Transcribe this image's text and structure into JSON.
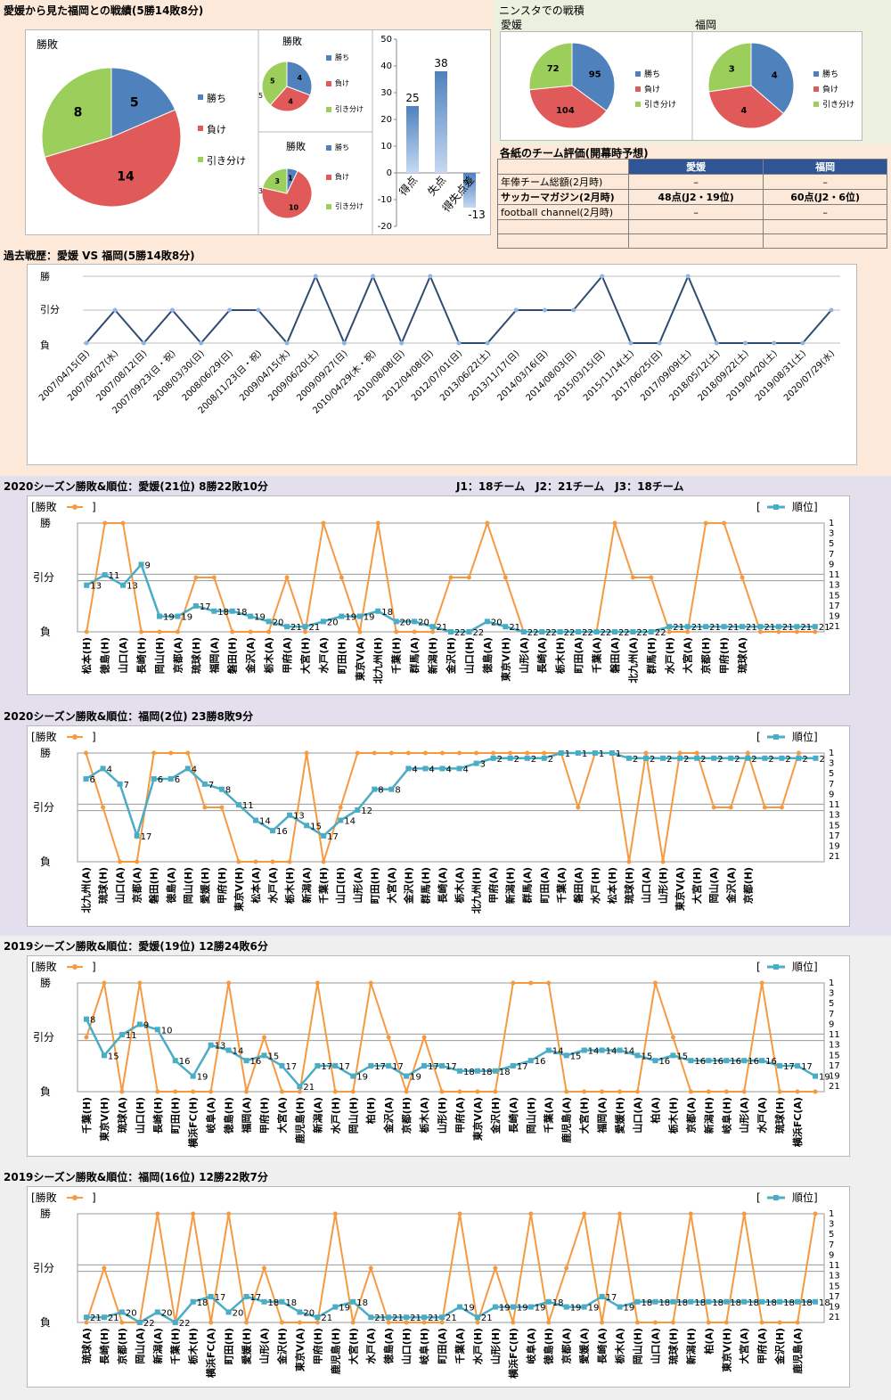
{
  "h2h": {
    "title": "愛媛から見た福岡との戦績(5勝14敗8分)",
    "big_pie": {
      "title": "勝敗",
      "values": [
        5,
        14,
        8
      ]
    },
    "small_pie1": {
      "title": "勝敗",
      "values": [
        4,
        4,
        5
      ]
    },
    "small_pie2": {
      "title": "勝敗",
      "values": [
        1,
        10,
        3
      ]
    },
    "legend": [
      "勝ち",
      "負け",
      "引き分け"
    ],
    "goals": {
      "categories": [
        "得点",
        "失点",
        "得失点差"
      ],
      "values": [
        25,
        38,
        -13
      ],
      "yticks": [
        50,
        40,
        30,
        20,
        10,
        0,
        -10,
        -20
      ]
    }
  },
  "ninsta": {
    "title": "ニンスタでの戦積",
    "ehime_label": "愛媛",
    "fukuoka_label": "福岡",
    "ehime_values": [
      95,
      104,
      72
    ],
    "fukuoka_values": [
      4,
      4,
      3
    ],
    "legend": [
      "勝ち",
      "負け",
      "引き分け"
    ]
  },
  "eval": {
    "title": "各紙のチーム評価(開幕時予想)",
    "cols": [
      "愛媛",
      "福岡"
    ],
    "rows": [
      [
        "年俸チーム総額(2月時)",
        "–",
        "–"
      ],
      [
        "サッカーマガジン(2月時)",
        "48点(J2・19位)",
        "60点(J2・6位)"
      ],
      [
        "football channel(2月時)",
        "–",
        "–"
      ],
      [
        "",
        "",
        ""
      ],
      [
        "",
        "",
        ""
      ]
    ]
  },
  "history": {
    "title": "過去戦歴：愛媛 VS 福岡(5勝14敗8分)",
    "ylabels": [
      "勝",
      "引分",
      "負"
    ],
    "dates": [
      "2007/04/15(日)",
      "2007/06/27(水)",
      "2007/08/12(日)",
      "2007/09/23(日・祝)",
      "2008/03/30(日)",
      "2008/06/29(日)",
      "2008/11/23(日・祝)",
      "2009/04/15(水)",
      "2009/06/20(土)",
      "2009/09/27(日)",
      "2010/04/29(木・祝)",
      "2010/08/08(日)",
      "2012/04/08(日)",
      "2012/07/01(日)",
      "2013/06/22(土)",
      "2013/11/17(日)",
      "2014/03/16(日)",
      "2014/08/03(日)",
      "2015/03/15(日)",
      "2015/11/14(土)",
      "2017/06/25(日)",
      "2017/09/09(土)",
      "2018/05/12(土)",
      "2018/09/22(土)",
      "2019/04/20(土)",
      "2019/08/31(土)",
      "2020/07/29(水)"
    ],
    "results": [
      0,
      1,
      0,
      1,
      0,
      1,
      1,
      0,
      2,
      0,
      2,
      0,
      2,
      0,
      0,
      1,
      1,
      1,
      2,
      0,
      0,
      2,
      0,
      0,
      0,
      0,
      1
    ]
  },
  "league_note": "J1：18チーム　J2：21チーム　J3：18チーム",
  "seasons": [
    {
      "title": "2020シーズン勝敗&順位：愛媛(21位) 8勝22敗10分",
      "legend_left": "[勝敗",
      "legend_left_close": "]",
      "legend_right": "[",
      "legend_right_label": "順位]",
      "ylabels": [
        "勝",
        "引分",
        "負"
      ],
      "rank_ticks": [
        "1",
        "3",
        "5",
        "7",
        "9",
        "11",
        "13",
        "15",
        "17",
        "19",
        "21"
      ],
      "opponents": [
        "松本(H)",
        "徳島(H)",
        "山口(A)",
        "長崎(H)",
        "岡山(H)",
        "京都(A)",
        "琉球(H)",
        "福岡(A)",
        "磐田(H)",
        "金沢(A)",
        "栃木(A)",
        "甲府(A)",
        "大宮(H)",
        "水戸(A)",
        "町田(H)",
        "東京V(A)",
        "北九州(H)",
        "千葉(H)",
        "群馬(A)",
        "新潟(H)",
        "金沢(H)",
        "山口(H)",
        "徳島(A)",
        "東京V(H)",
        "山形(A)",
        "長崎(A)",
        "栃木(H)",
        "町田(A)",
        "千葉(A)",
        "磐田(A)",
        "北九州(A)",
        "群馬(H)",
        "水戸(H)",
        "大宮(A)",
        "京都(H)",
        "甲府(H)",
        "琉球(A)"
      ],
      "results": [
        0,
        2,
        2,
        0,
        0,
        0,
        1,
        1,
        0,
        0,
        0,
        1,
        0,
        2,
        1,
        0,
        2,
        0,
        0,
        0,
        1,
        1,
        2,
        1,
        0,
        0,
        0,
        0,
        0,
        2,
        1,
        1,
        0,
        0,
        2,
        2,
        1,
        0,
        0,
        0,
        0
      ],
      "ranks": [
        13,
        11,
        13,
        9,
        19,
        19,
        17,
        18,
        18,
        19,
        20,
        21,
        21,
        20,
        19,
        19,
        18,
        20,
        20,
        21,
        22,
        22,
        20,
        21,
        22,
        22,
        22,
        22,
        22,
        22,
        22,
        22,
        21,
        21,
        21,
        21,
        21,
        21,
        21,
        21,
        21
      ]
    },
    {
      "title": "2020シーズン勝敗&順位：福岡(2位) 23勝8敗9分",
      "legend_left": "[勝敗",
      "legend_left_close": "]",
      "legend_right": "[",
      "legend_right_label": "順位]",
      "ylabels": [
        "勝",
        "引分",
        "負"
      ],
      "rank_ticks": [
        "1",
        "3",
        "5",
        "7",
        "9",
        "11",
        "13",
        "15",
        "17",
        "19",
        "21"
      ],
      "opponents": [
        "北九州(A)",
        "琉球(H)",
        "山口(A)",
        "京都(A)",
        "磐田(H)",
        "徳島(A)",
        "岡山(H)",
        "愛媛(H)",
        "甲府(H)",
        "東京V(H)",
        "松本(A)",
        "水戸(A)",
        "栃木(H)",
        "新潟(A)",
        "千葉(H)",
        "山口(H)",
        "山形(A)",
        "町田(H)",
        "大宮(A)",
        "金沢(H)",
        "群馬(H)",
        "長崎(A)",
        "栃木(A)",
        "北九州(H)",
        "甲府(A)",
        "新潟(H)",
        "群馬(A)",
        "町田(A)",
        "千葉(A)",
        "磐田(A)",
        "水戸(H)",
        "松本(H)",
        "琉球(H)",
        "山口(A)",
        "山形(H)",
        "東京V(A)",
        "大宮(H)",
        "岡山(A)",
        "金沢(A)",
        "京都(H)"
      ],
      "results": [
        2,
        1,
        0,
        0,
        2,
        2,
        2,
        1,
        1,
        0,
        0,
        0,
        0,
        2,
        0,
        1,
        2,
        2,
        2,
        2,
        2,
        2,
        2,
        2,
        2,
        2,
        2,
        2,
        2,
        1,
        2,
        2,
        0,
        2,
        0,
        2,
        2,
        1,
        1,
        2,
        1,
        1,
        2
      ],
      "ranks": [
        6,
        4,
        7,
        17,
        6,
        6,
        4,
        7,
        8,
        11,
        14,
        16,
        13,
        15,
        17,
        14,
        12,
        8,
        8,
        4,
        4,
        4,
        4,
        3,
        2,
        2,
        2,
        2,
        1,
        1,
        1,
        1,
        2,
        2,
        2,
        2,
        2,
        2,
        2,
        2,
        2,
        2,
        2,
        2
      ]
    },
    {
      "title": "2019シーズン勝敗&順位：愛媛(19位) 12勝24敗6分",
      "legend_left": "[勝敗",
      "legend_left_close": "]",
      "legend_right": "[",
      "legend_right_label": "順位]",
      "ylabels": [
        "勝",
        "引分",
        "負"
      ],
      "rank_ticks": [
        "1",
        "3",
        "5",
        "7",
        "9",
        "11",
        "13",
        "15",
        "17",
        "19",
        "21"
      ],
      "opponents": [
        "千葉(H)",
        "東京V(H)",
        "琉球(A)",
        "山口(H)",
        "長崎(H)",
        "町田(H)",
        "横浜FC(H)",
        "岐阜(A)",
        "徳島(H)",
        "福岡(A)",
        "甲府(H)",
        "大宮(A)",
        "鹿児島(H)",
        "新潟(A)",
        "水戸(H)",
        "岡山(H)",
        "柏(H)",
        "金沢(A)",
        "京都(H)",
        "栃木(A)",
        "山形(H)",
        "甲府(A)",
        "東京V(A)",
        "金沢(H)",
        "長崎(A)",
        "岡山(H)",
        "千葉(A)",
        "鹿児島(A)",
        "大宮(H)",
        "福岡(A)",
        "愛媛(H)",
        "山口(A)",
        "柏(A)",
        "栃木(H)",
        "京都(A)",
        "新潟(H)",
        "岐阜(H)",
        "山形(A)",
        "水戸(A)",
        "琉球(H)",
        "横浜FC(A)"
      ],
      "results": [
        1,
        2,
        0,
        2,
        0,
        0,
        0,
        0,
        2,
        0,
        1,
        0,
        0,
        2,
        0,
        0,
        2,
        1,
        0,
        1,
        0,
        0,
        0,
        0,
        2,
        2,
        2,
        0,
        0,
        0,
        0,
        0,
        2,
        1,
        0,
        0,
        0,
        0,
        2,
        0,
        0,
        0
      ],
      "ranks": [
        8,
        15,
        11,
        9,
        10,
        16,
        19,
        13,
        14,
        16,
        15,
        17,
        21,
        17,
        17,
        19,
        17,
        17,
        19,
        17,
        17,
        18,
        18,
        18,
        17,
        16,
        14,
        15,
        14,
        14,
        14,
        15,
        16,
        15,
        16,
        16,
        16,
        16,
        16,
        17,
        17,
        19
      ]
    },
    {
      "title": "2019シーズン勝敗&順位：福岡(16位) 12勝22敗7分",
      "legend_left": "[勝敗",
      "legend_left_close": "]",
      "legend_right": "[",
      "legend_right_label": "順位]",
      "ylabels": [
        "勝",
        "引分",
        "負"
      ],
      "rank_ticks": [
        "1",
        "3",
        "5",
        "7",
        "9",
        "11",
        "13",
        "15",
        "17",
        "19",
        "21"
      ],
      "opponents": [
        "琉球(A)",
        "長崎(H)",
        "京都(H)",
        "岡山(A)",
        "新潟(A)",
        "千葉(H)",
        "栃木(H)",
        "横浜FC(A)",
        "町田(H)",
        "愛媛(H)",
        "山形(A)",
        "金沢(H)",
        "東京V(A)",
        "甲府(H)",
        "鹿児島(H)",
        "大宮(H)",
        "水戸(A)",
        "徳島(A)",
        "山口(H)",
        "岐阜(H)",
        "町田(A)",
        "千葉(A)",
        "水戸(H)",
        "山形(H)",
        "横浜FC(H)",
        "岐阜(A)",
        "徳島(H)",
        "京都(A)",
        "愛媛(A)",
        "長崎(A)",
        "栃木(A)",
        "岡山(H)",
        "山口(A)",
        "琉球(H)",
        "新潟(H)",
        "柏(A)",
        "東京V(H)",
        "大宮(A)",
        "甲府(A)",
        "金沢(H)",
        "鹿児島(A)"
      ],
      "results": [
        0,
        1,
        0,
        0,
        2,
        0,
        2,
        0,
        2,
        0,
        1,
        0,
        0,
        0,
        2,
        0,
        1,
        0,
        0,
        0,
        0,
        2,
        0,
        1,
        0,
        2,
        0,
        1,
        2,
        0,
        2,
        0,
        0,
        0,
        2,
        0,
        0,
        2,
        0,
        0,
        0,
        2
      ],
      "ranks": [
        21,
        21,
        20,
        22,
        20,
        22,
        18,
        17,
        20,
        17,
        18,
        18,
        20,
        21,
        19,
        18,
        21,
        21,
        21,
        21,
        21,
        19,
        21,
        19,
        19,
        19,
        18,
        19,
        19,
        17,
        19,
        18,
        18,
        18,
        18,
        18,
        18,
        18,
        18,
        18,
        18,
        18
      ]
    }
  ],
  "colors": {
    "win": "#4f81bd",
    "loss": "#e05a5a",
    "draw": "#9bce5a",
    "orange": "#f59a40",
    "teal": "#4bacc6",
    "navy": "#2f4c70"
  }
}
